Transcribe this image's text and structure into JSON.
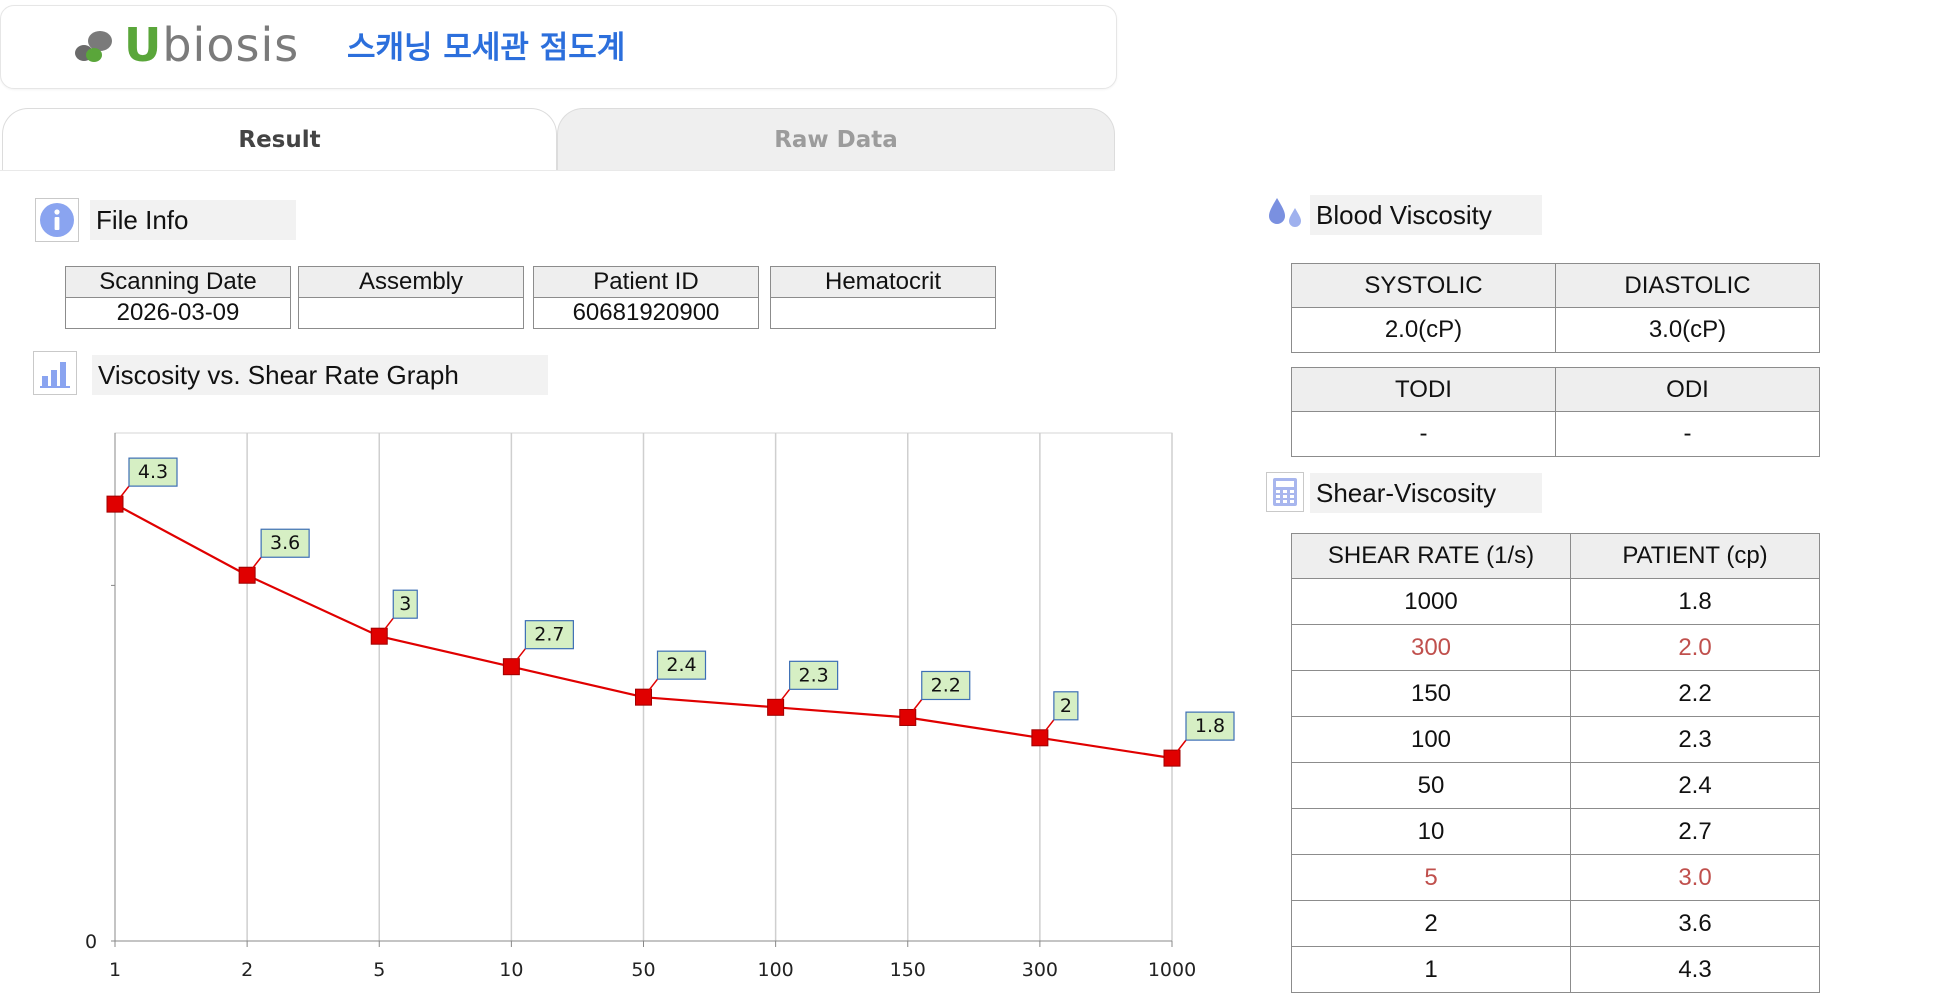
{
  "header": {
    "logo_text": "biosis",
    "logo_letter": "U",
    "title": "스캐닝 모세관 점도계"
  },
  "tabs": [
    {
      "label": "Result"
    },
    {
      "label": "Raw Data"
    }
  ],
  "file_info": {
    "title": "File Info",
    "columns": [
      "Scanning Date",
      "Assembly",
      "Patient ID",
      "Hematocrit"
    ],
    "values": [
      "2026-03-09",
      "",
      "60681920900",
      ""
    ]
  },
  "graph_section": {
    "title": "Viscosity vs. Shear Rate Graph"
  },
  "blood_viscosity": {
    "title": "Blood Viscosity",
    "row1_headers": [
      "SYSTOLIC",
      "DIASTOLIC"
    ],
    "row1_values": [
      "2.0(cP)",
      "3.0(cP)"
    ],
    "row2_headers": [
      "TODI",
      "ODI"
    ],
    "row2_values": [
      "-",
      "-"
    ]
  },
  "shear_viscosity": {
    "title": "Shear-Viscosity",
    "headers": [
      "SHEAR RATE (1/s)",
      "PATIENT (cp)"
    ],
    "rows": [
      {
        "rate": "1000",
        "value": "1.8",
        "highlight": false
      },
      {
        "rate": "300",
        "value": "2.0",
        "highlight": true
      },
      {
        "rate": "150",
        "value": "2.2",
        "highlight": false
      },
      {
        "rate": "100",
        "value": "2.3",
        "highlight": false
      },
      {
        "rate": "50",
        "value": "2.4",
        "highlight": false
      },
      {
        "rate": "10",
        "value": "2.7",
        "highlight": false
      },
      {
        "rate": "5",
        "value": "3.0",
        "highlight": true
      },
      {
        "rate": "2",
        "value": "3.6",
        "highlight": false
      },
      {
        "rate": "1",
        "value": "4.3",
        "highlight": false
      }
    ]
  },
  "colors": {
    "accent_title": "#2c6fdc",
    "series": "#e00000",
    "highlight_text": "#c0504d",
    "label_fill": "#d6efc4",
    "label_border": "#3d6fb5"
  },
  "chart_data": {
    "type": "line",
    "categories": [
      "1",
      "2",
      "5",
      "10",
      "50",
      "100",
      "150",
      "300",
      "1000"
    ],
    "series": [
      {
        "values": [
          4.3,
          3.6,
          3.0,
          2.7,
          2.4,
          2.3,
          2.2,
          2.0,
          1.8
        ]
      }
    ],
    "data_labels": [
      "4.3",
      "3.6",
      "3",
      "2.7",
      "2.4",
      "2.3",
      "2.2",
      "2",
      "1.8"
    ],
    "y_tick_labels": [
      "0"
    ],
    "ylim": [
      0,
      5
    ],
    "grid": "vertical",
    "legend": "none"
  }
}
